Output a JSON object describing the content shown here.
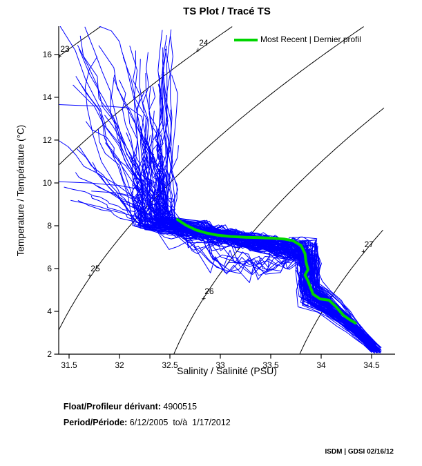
{
  "title": "TS Plot / Tracé TS",
  "annotations": {
    "float_label": "Float/Profileur dérivant:",
    "float_value": " 4900515",
    "period_label": "Period/Période:",
    "period_value": " 6/12/2005  to/à  1/17/2012",
    "credit": "ISDM | GDSI 02/16/12"
  },
  "chart_data": {
    "type": "line",
    "title": "TS Plot / Tracé TS",
    "xlabel": "Salinity / Salinité (PSU)",
    "ylabel": "Temperature / Température (°C)",
    "xlim": [
      31.397,
      34.733
    ],
    "ylim": [
      2,
      17.32
    ],
    "xticks": [
      31.5,
      32,
      32.5,
      33,
      33.5,
      34,
      34.5
    ],
    "xtick_labels": [
      "31.5",
      "32",
      "32.5",
      "33",
      "33.5",
      "34",
      "34.5"
    ],
    "yticks": [
      2,
      4,
      6,
      8,
      10,
      12,
      14,
      16
    ],
    "ytick_labels": [
      "2",
      "4",
      "6",
      "8",
      "10",
      "12",
      "14",
      "16"
    ],
    "grid": false,
    "axis_color": "#000000",
    "legend": {
      "position": "top-right-inside",
      "entries": [
        {
          "label": "Most Recent | Dernier profil",
          "color": "#00D500"
        }
      ]
    },
    "density_contours": {
      "color": "#000000",
      "levels": [
        23,
        24,
        25,
        26,
        27
      ],
      "label_anchors_st": [
        [
          31.404,
          15.94
        ],
        [
          32.78,
          16.23
        ],
        [
          31.705,
          5.68
        ],
        [
          32.835,
          4.61
        ],
        [
          34.42,
          6.81
        ]
      ],
      "label_texts": [
        "23",
        "24",
        "25",
        "26",
        "27"
      ],
      "grid_s_max": 34.63
    },
    "profiles": {
      "color": "#0000FF",
      "description": "historical float TS profiles (dense blue spaghetti)"
    },
    "outlier_profiles_st": [
      [
        [
          31.3,
          13.68
        ],
        [
          31.6,
          13.62
        ],
        [
          31.9,
          13.58
        ],
        [
          32.1,
          13.5
        ],
        [
          32.22,
          13.1
        ],
        [
          32.25,
          12.4
        ],
        [
          32.3,
          11.3
        ],
        [
          32.33,
          10.2
        ],
        [
          32.38,
          9.2
        ],
        [
          32.5,
          8.4
        ],
        [
          32.7,
          7.9
        ]
      ],
      [
        [
          31.3,
          10.08
        ],
        [
          31.7,
          10.0
        ],
        [
          32.0,
          9.88
        ],
        [
          32.2,
          9.7
        ],
        [
          32.36,
          9.3
        ],
        [
          32.46,
          8.7
        ],
        [
          32.56,
          8.2
        ]
      ],
      [
        [
          31.72,
          9.62
        ],
        [
          32.0,
          9.52
        ],
        [
          32.22,
          9.28
        ],
        [
          32.4,
          8.85
        ],
        [
          32.52,
          8.3
        ]
      ],
      [
        [
          31.8,
          17.32
        ],
        [
          31.92,
          17.1
        ],
        [
          32.0,
          16.6
        ],
        [
          32.02,
          16.2
        ],
        [
          32.06,
          15.6
        ],
        [
          32.1,
          14.8
        ],
        [
          32.16,
          13.6
        ],
        [
          32.24,
          11.8
        ],
        [
          32.32,
          10.0
        ],
        [
          32.45,
          8.8
        ],
        [
          32.58,
          8.2
        ]
      ],
      [
        [
          31.78,
          15.9
        ],
        [
          31.7,
          15.3
        ],
        [
          31.66,
          14.5
        ],
        [
          31.68,
          13.5
        ],
        [
          31.74,
          12.2
        ],
        [
          31.82,
          11.0
        ],
        [
          31.95,
          10.0
        ],
        [
          32.15,
          9.3
        ],
        [
          32.38,
          8.7
        ],
        [
          32.55,
          8.15
        ]
      ],
      [
        [
          31.95,
          15.05
        ],
        [
          31.92,
          14.0
        ],
        [
          31.98,
          12.8
        ],
        [
          32.06,
          11.5
        ],
        [
          32.18,
          10.4
        ],
        [
          32.35,
          9.5
        ],
        [
          32.52,
          8.8
        ],
        [
          32.62,
          8.2
        ]
      ]
    ],
    "most_recent_profile": {
      "color": "#00D500",
      "points_st": [
        [
          32.575,
          8.29
        ],
        [
          32.66,
          8.02
        ],
        [
          32.76,
          7.8
        ],
        [
          32.86,
          7.66
        ],
        [
          32.97,
          7.56
        ],
        [
          33.1,
          7.5
        ],
        [
          33.25,
          7.46
        ],
        [
          33.4,
          7.44
        ],
        [
          33.52,
          7.42
        ],
        [
          33.63,
          7.38
        ],
        [
          33.72,
          7.3
        ],
        [
          33.8,
          7.08
        ],
        [
          33.84,
          6.7
        ],
        [
          33.85,
          6.3
        ],
        [
          33.87,
          5.95
        ],
        [
          33.84,
          5.7
        ],
        [
          33.87,
          5.42
        ],
        [
          33.92,
          4.8
        ],
        [
          33.99,
          4.58
        ],
        [
          34.08,
          4.52
        ],
        [
          34.15,
          4.2
        ],
        [
          34.22,
          3.82
        ],
        [
          34.28,
          3.62
        ],
        [
          34.34,
          3.45
        ]
      ]
    }
  }
}
